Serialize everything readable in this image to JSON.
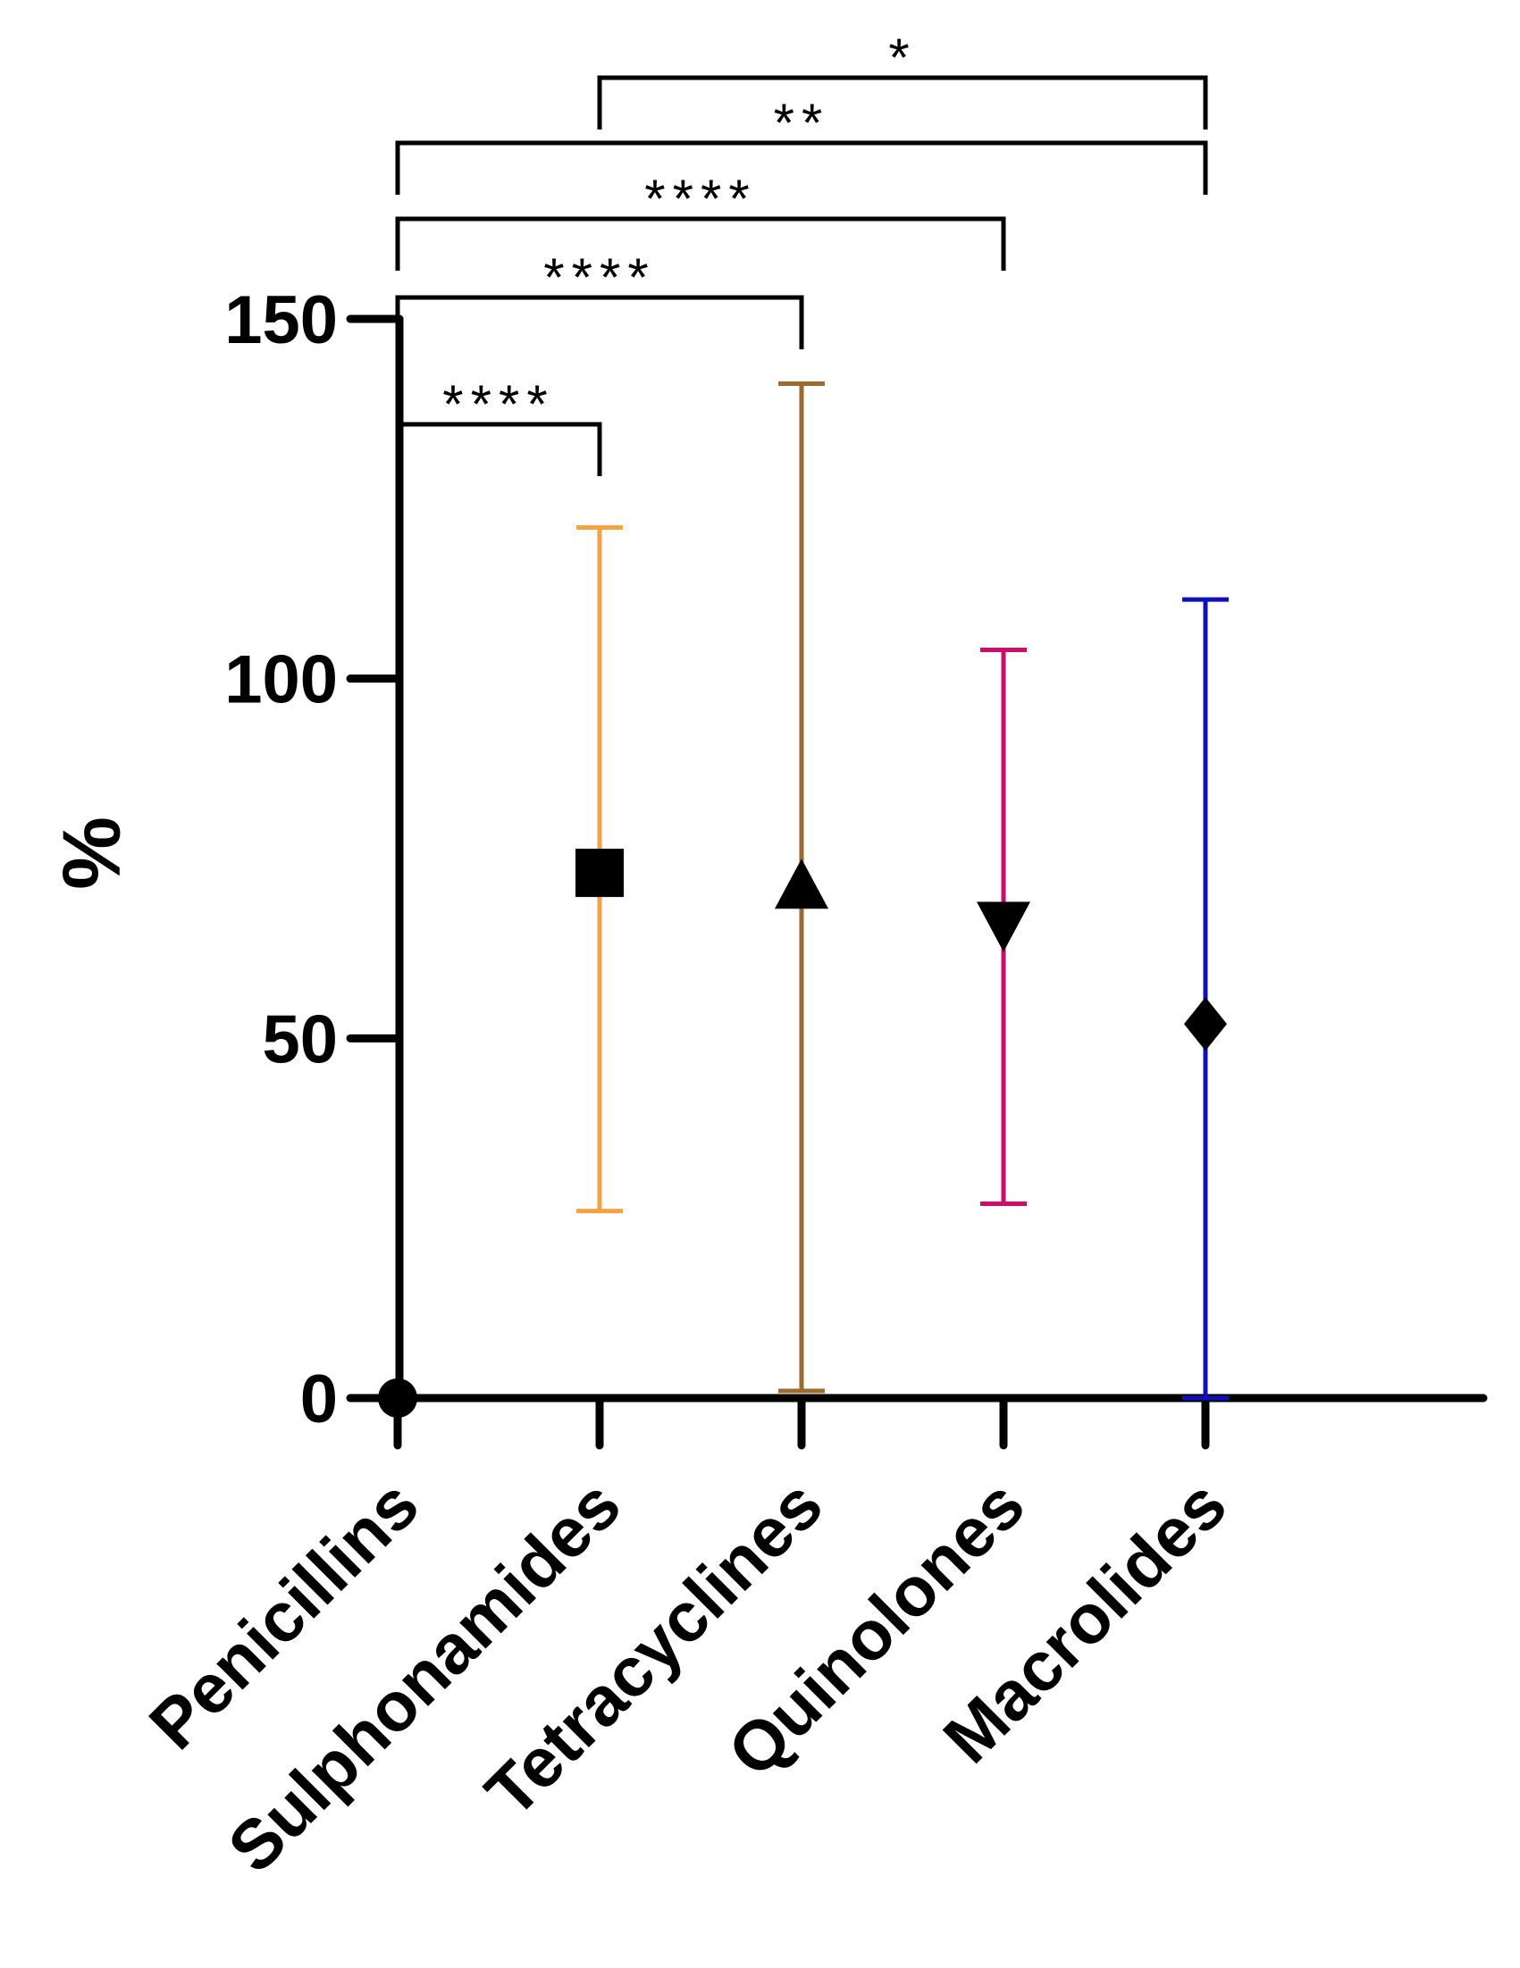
{
  "chart_data": {
    "type": "scatter",
    "title": "",
    "xlabel": "",
    "ylabel": "%",
    "ylim": [
      0,
      150
    ],
    "yticks": [
      0,
      50,
      100,
      150
    ],
    "ytick_labels": [
      "0",
      "50",
      "100",
      "150"
    ],
    "grid": false,
    "legend": "none",
    "categories": [
      "Penicillins",
      "Sulphonamides",
      "Tetracyclines",
      "Quinolones",
      "Macrolides"
    ],
    "points": [
      {
        "category": "Penicillins",
        "mean": 0,
        "lower": 0,
        "upper": 0,
        "marker": "circle",
        "error_color": "#000000"
      },
      {
        "category": "Sulphonamides",
        "mean": 73,
        "lower": 26,
        "upper": 121,
        "marker": "square",
        "error_color": "#F7A240"
      },
      {
        "category": "Tetracyclines",
        "mean": 71,
        "lower": 1,
        "upper": 141,
        "marker": "triangle-up",
        "error_color": "#9C6B30"
      },
      {
        "category": "Quinolones",
        "mean": 66,
        "lower": 27,
        "upper": 104,
        "marker": "triangle-down",
        "error_color": "#CC0E6A"
      },
      {
        "category": "Macrolides",
        "mean": 52,
        "lower": 0,
        "upper": 111,
        "marker": "diamond",
        "error_color": "#1010BB"
      }
    ],
    "significance": [
      {
        "from": "Penicillins",
        "to": "Sulphonamides",
        "label": "****"
      },
      {
        "from": "Penicillins",
        "to": "Tetracyclines",
        "label": "****"
      },
      {
        "from": "Penicillins",
        "to": "Quinolones",
        "label": "****"
      },
      {
        "from": "Penicillins",
        "to": "Macrolides",
        "label": "**"
      },
      {
        "from": "Sulphonamides",
        "to": "Macrolides",
        "label": "*"
      }
    ]
  }
}
